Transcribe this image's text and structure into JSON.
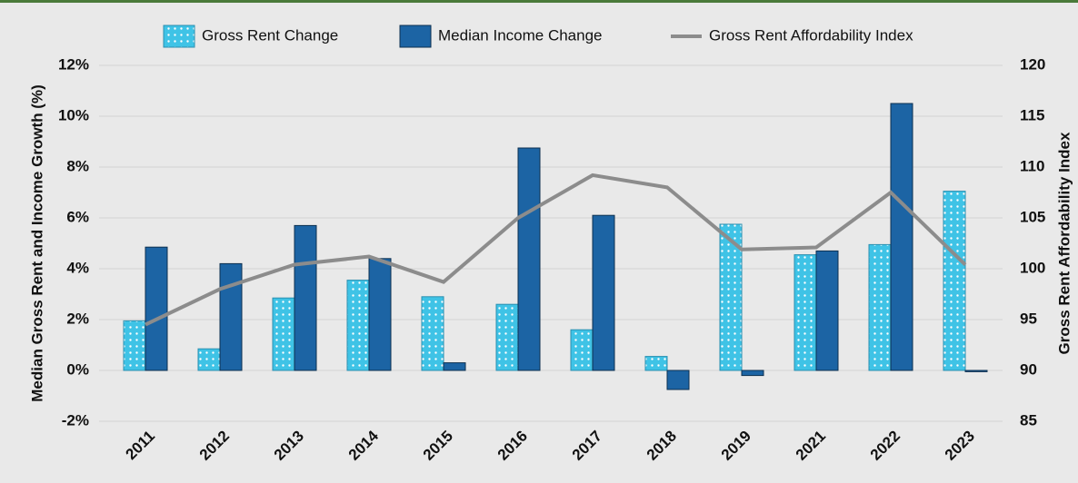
{
  "chart_data": {
    "type": "bar-line",
    "ylabel": "Median Gross Rent and Income Growth (%)",
    "y2label": "Gross Rent Affordability Index",
    "categories": [
      "2011",
      "2012",
      "2013",
      "2014",
      "2015",
      "2016",
      "2017",
      "2018",
      "2019",
      "2021",
      "2022",
      "2023"
    ],
    "series": [
      {
        "name": "Gross Rent Change",
        "type": "bar",
        "color": "#3fc3e6",
        "values": [
          1.95,
          0.85,
          2.85,
          3.55,
          2.9,
          2.6,
          1.6,
          0.55,
          5.75,
          4.55,
          4.95,
          7.05
        ]
      },
      {
        "name": "Median Income Change",
        "type": "bar",
        "color": "#1c64a4",
        "values": [
          4.85,
          4.2,
          5.7,
          4.4,
          0.3,
          8.75,
          6.1,
          -0.75,
          -0.2,
          4.7,
          10.5,
          -0.05
        ]
      },
      {
        "name": "Gross Rent Affordability Index",
        "type": "line",
        "axis": "y2",
        "color": "#8c8c8c",
        "values": [
          94.5,
          98,
          100.4,
          101.2,
          98.7,
          105,
          109.2,
          108,
          101.9,
          102.1,
          107.5,
          100.4
        ]
      }
    ],
    "ylim": [
      -2,
      12
    ],
    "yticks": [
      {
        "value": -2,
        "label": "-2%"
      },
      {
        "value": 0,
        "label": "0%"
      },
      {
        "value": 2,
        "label": "2%"
      },
      {
        "value": 4,
        "label": "4%"
      },
      {
        "value": 6,
        "label": "6%"
      },
      {
        "value": 8,
        "label": "8%"
      },
      {
        "value": 10,
        "label": "10%"
      },
      {
        "value": 12,
        "label": "12%"
      }
    ],
    "y2lim": [
      85,
      120
    ],
    "y2ticks": [
      85,
      90,
      95,
      100,
      105,
      110,
      115,
      120
    ],
    "grid": true,
    "legend": "top"
  }
}
